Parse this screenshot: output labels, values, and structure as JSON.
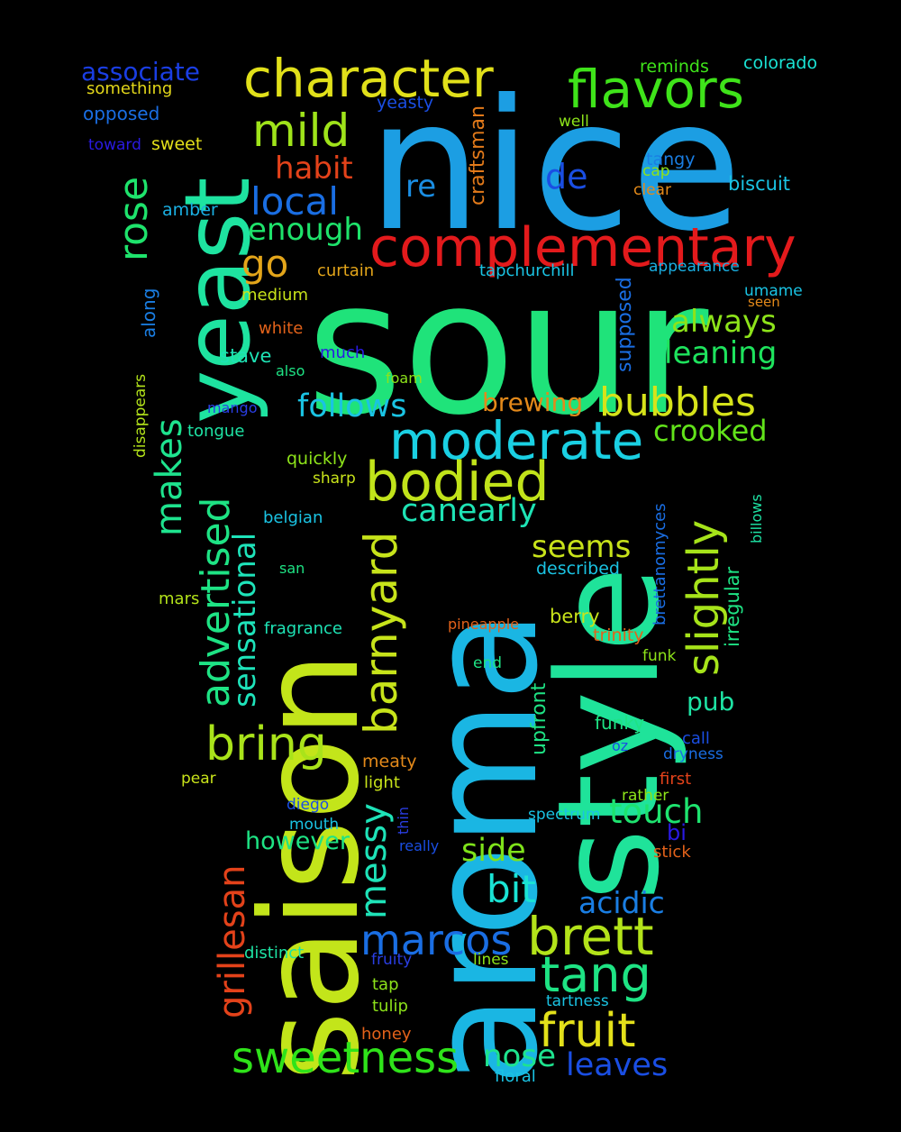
{
  "background": "#000000",
  "words": [
    {
      "text": "sour",
      "color": "#1fe37a"
    },
    {
      "text": "nice",
      "color": "#1c9ee3"
    },
    {
      "text": "saison",
      "color": "#c3e51a"
    },
    {
      "text": "aroma",
      "color": "#1ab6e3"
    },
    {
      "text": "style",
      "color": "#1fe39a"
    },
    {
      "text": "yeast",
      "color": "#1ee3a0"
    },
    {
      "text": "complementary",
      "color": "#e31a1c"
    },
    {
      "text": "character",
      "color": "#e1e01a"
    },
    {
      "text": "flavors",
      "color": "#3fe31a"
    },
    {
      "text": "moderate",
      "color": "#1ad0e3"
    },
    {
      "text": "bodied",
      "color": "#c1e31a"
    },
    {
      "text": "bubbles",
      "color": "#d6e31a"
    },
    {
      "text": "mild",
      "color": "#9fe31a"
    },
    {
      "text": "local",
      "color": "#1a6ee3"
    },
    {
      "text": "habit",
      "color": "#e3421a"
    },
    {
      "text": "enough",
      "color": "#1ee36b"
    },
    {
      "text": "go",
      "color": "#e3a51a"
    },
    {
      "text": "rose",
      "color": "#1ee36c"
    },
    {
      "text": "re",
      "color": "#1a8ee3"
    },
    {
      "text": "de",
      "color": "#1a4ee3"
    },
    {
      "text": "craftsman",
      "color": "#e37a1a"
    },
    {
      "text": "always",
      "color": "#8de31a"
    },
    {
      "text": "leaning",
      "color": "#1ee35d"
    },
    {
      "text": "crooked",
      "color": "#62e31a"
    },
    {
      "text": "follows",
      "color": "#1ac3e3"
    },
    {
      "text": "brewing",
      "color": "#e3891a"
    },
    {
      "text": "slightly",
      "color": "#a6e31a"
    },
    {
      "text": "canearly",
      "color": "#1ee3b5"
    },
    {
      "text": "seems",
      "color": "#c8e31a"
    },
    {
      "text": "barnyard",
      "color": "#c7e31a"
    },
    {
      "text": "advertised",
      "color": "#1ee384"
    },
    {
      "text": "makes",
      "color": "#1ee38e"
    },
    {
      "text": "sensational",
      "color": "#1ee3ba"
    },
    {
      "text": "bring",
      "color": "#a9e31a"
    },
    {
      "text": "grillesan",
      "color": "#e3421a"
    },
    {
      "text": "messy",
      "color": "#1ee3b8"
    },
    {
      "text": "touch",
      "color": "#1ee36f"
    },
    {
      "text": "side",
      "color": "#7fe31a"
    },
    {
      "text": "bit",
      "color": "#1ae3d4"
    },
    {
      "text": "acidic",
      "color": "#1a7ee3"
    },
    {
      "text": "marcos",
      "color": "#1a6ee3"
    },
    {
      "text": "brett",
      "color": "#b3e31a"
    },
    {
      "text": "tang",
      "color": "#1ee384"
    },
    {
      "text": "fruit",
      "color": "#e3e01a"
    },
    {
      "text": "sweetness",
      "color": "#2fe31a"
    },
    {
      "text": "nose",
      "color": "#1ee38e"
    },
    {
      "text": "leaves",
      "color": "#1a4ee3"
    },
    {
      "text": "however",
      "color": "#1ee384"
    },
    {
      "text": "pub",
      "color": "#1ee3a4"
    },
    {
      "text": "associate",
      "color": "#1a3ee3"
    },
    {
      "text": "something",
      "color": "#e3d71a"
    },
    {
      "text": "opposed",
      "color": "#1a6ee3"
    },
    {
      "text": "toward",
      "color": "#2a1ae3"
    },
    {
      "text": "sweet",
      "color": "#e3e01a"
    },
    {
      "text": "amber",
      "color": "#1ab0e3"
    },
    {
      "text": "reminds",
      "color": "#3fe31a"
    },
    {
      "text": "colorado",
      "color": "#1ae3d4"
    },
    {
      "text": "yeasty",
      "color": "#1a4ee3"
    },
    {
      "text": "well",
      "color": "#8de31a"
    },
    {
      "text": "tangy",
      "color": "#1a7ee3"
    },
    {
      "text": "cap",
      "color": "#8de31a"
    },
    {
      "text": "clear",
      "color": "#e38a1a"
    },
    {
      "text": "biscuit",
      "color": "#1ac3e3"
    },
    {
      "text": "curtain",
      "color": "#e3a51a"
    },
    {
      "text": "tapchurchill",
      "color": "#1ac3e3"
    },
    {
      "text": "appearance",
      "color": "#1ab0e3"
    },
    {
      "text": "supposed",
      "color": "#1a6ee3"
    },
    {
      "text": "umame",
      "color": "#1ac3e3"
    },
    {
      "text": "seen",
      "color": "#e3891a"
    },
    {
      "text": "medium",
      "color": "#c8e31a"
    },
    {
      "text": "along",
      "color": "#1a7ee3"
    },
    {
      "text": "white",
      "color": "#e3621a"
    },
    {
      "text": "much",
      "color": "#2a1ae3"
    },
    {
      "text": "stave",
      "color": "#1ee3b5"
    },
    {
      "text": "also",
      "color": "#1ee384"
    },
    {
      "text": "foam",
      "color": "#8de31a"
    },
    {
      "text": "disappears",
      "color": "#b3e31a"
    },
    {
      "text": "mango",
      "color": "#2a3ee3"
    },
    {
      "text": "tongue",
      "color": "#1ee3a4"
    },
    {
      "text": "quickly",
      "color": "#8de31a"
    },
    {
      "text": "sharp",
      "color": "#c8e31a"
    },
    {
      "text": "belgian",
      "color": "#1ac3e3"
    },
    {
      "text": "san",
      "color": "#1ee384"
    },
    {
      "text": "mars",
      "color": "#b3e31a"
    },
    {
      "text": "fragrance",
      "color": "#1ee3b5"
    },
    {
      "text": "described",
      "color": "#1ac3e3"
    },
    {
      "text": "pineapple",
      "color": "#e3621a"
    },
    {
      "text": "berry",
      "color": "#c8e31a"
    },
    {
      "text": "trinity",
      "color": "#e3621a"
    },
    {
      "text": "brettanomyces",
      "color": "#1a6ee3"
    },
    {
      "text": "irregular",
      "color": "#1ee384"
    },
    {
      "text": "billows",
      "color": "#1ee3a4"
    },
    {
      "text": "funk",
      "color": "#8de31a"
    },
    {
      "text": "end",
      "color": "#1ee384"
    },
    {
      "text": "upfront",
      "color": "#1ee384"
    },
    {
      "text": "funky",
      "color": "#1ee384"
    },
    {
      "text": "call",
      "color": "#1a4ee3"
    },
    {
      "text": "oz",
      "color": "#1a4ee3"
    },
    {
      "text": "dryness",
      "color": "#1a6ee3"
    },
    {
      "text": "meaty",
      "color": "#e3891a"
    },
    {
      "text": "first",
      "color": "#e3421a"
    },
    {
      "text": "pear",
      "color": "#c8e31a"
    },
    {
      "text": "light",
      "color": "#c8e31a"
    },
    {
      "text": "rather",
      "color": "#8de31a"
    },
    {
      "text": "diego",
      "color": "#1a4ee3"
    },
    {
      "text": "thin",
      "color": "#2a3ee3"
    },
    {
      "text": "spectrum",
      "color": "#1ac3e3"
    },
    {
      "text": "mouth",
      "color": "#1ac3e3"
    },
    {
      "text": "bi",
      "color": "#2a1ae3"
    },
    {
      "text": "really",
      "color": "#1a4ee3"
    },
    {
      "text": "stick",
      "color": "#e3621a"
    },
    {
      "text": "distinct",
      "color": "#1ee3a4"
    },
    {
      "text": "fruity",
      "color": "#2a3ee3"
    },
    {
      "text": "lines",
      "color": "#8de31a"
    },
    {
      "text": "tap",
      "color": "#8de31a"
    },
    {
      "text": "tulip",
      "color": "#8de31a"
    },
    {
      "text": "tartness",
      "color": "#1ac3e3"
    },
    {
      "text": "honey",
      "color": "#e3621a"
    },
    {
      "text": "floral",
      "color": "#1ac3e3"
    }
  ]
}
